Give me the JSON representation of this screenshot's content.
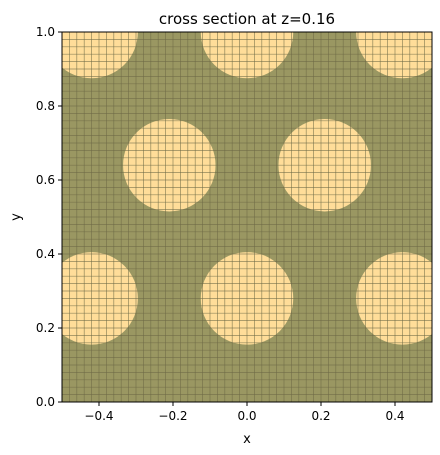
{
  "chart_data": {
    "type": "heatmap",
    "title": "cross section at z=0.16",
    "xlabel": "x",
    "ylabel": "y",
    "xlim": [
      -0.5,
      0.5
    ],
    "ylim": [
      0.0,
      1.0
    ],
    "xticks": [
      -0.4,
      -0.2,
      0.0,
      0.2,
      0.4
    ],
    "xtick_labels": [
      "−0.4",
      "−0.2",
      "0.0",
      "0.2",
      "0.4"
    ],
    "yticks": [
      0.0,
      0.2,
      0.4,
      0.6,
      0.8,
      1.0
    ],
    "ytick_labels": [
      "0.0",
      "0.2",
      "0.4",
      "0.6",
      "0.8",
      "1.0"
    ],
    "grid": true,
    "grid_step": 0.02,
    "background_color": "#9a9762",
    "circle_color": "#ffdd99",
    "grid_line_color": "#6e6a45",
    "circle_radius": 0.125,
    "circles": [
      {
        "x": -0.42,
        "y": 0.28
      },
      {
        "x": 0.0,
        "y": 0.28
      },
      {
        "x": 0.42,
        "y": 0.28
      },
      {
        "x": -0.21,
        "y": 0.64
      },
      {
        "x": 0.21,
        "y": 0.64
      },
      {
        "x": -0.42,
        "y": 1.0
      },
      {
        "x": 0.0,
        "y": 1.0
      },
      {
        "x": 0.42,
        "y": 1.0
      }
    ]
  }
}
